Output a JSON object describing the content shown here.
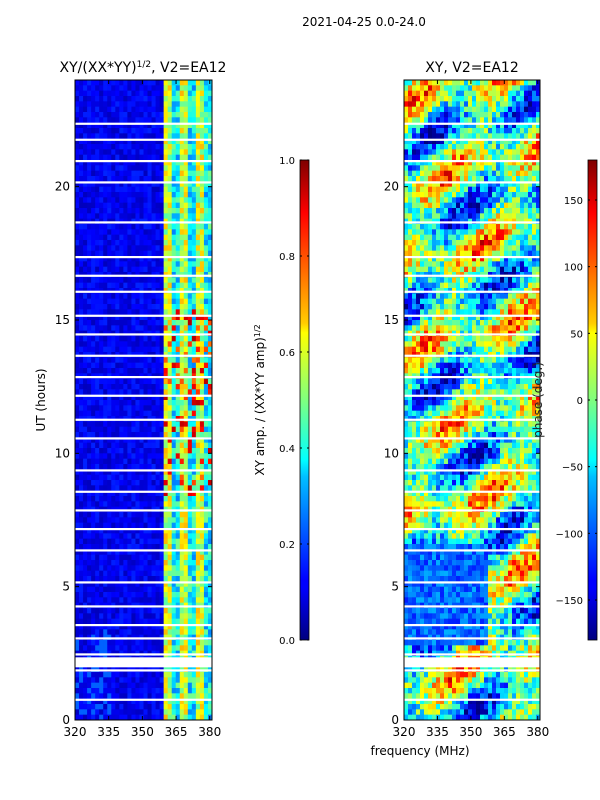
{
  "suptitle": "2021-04-25 0.0-24.0",
  "xlabel": "frequency (MHz)",
  "chart_data": [
    {
      "type": "heatmap",
      "title": "XY/(XX*YY)^{1/2}, V2=EA12",
      "title_parts": [
        "XY/(XX*YY)",
        "1/2",
        ", V2=EA12"
      ],
      "ylabel": "UT (hours)",
      "xlim": [
        320,
        381
      ],
      "ylim": [
        0,
        24
      ],
      "xticks": [
        320,
        335,
        350,
        365,
        380
      ],
      "yticks": [
        0,
        5,
        10,
        15,
        20
      ],
      "colorbar": {
        "label_parts": [
          "XY amp. / (XX*YY amp)",
          "1/2"
        ],
        "range": [
          0.0,
          1.0
        ],
        "ticks": [
          "0.0",
          "0.2",
          "0.4",
          "0.6",
          "0.8",
          "1.0"
        ],
        "colormap": "jet"
      }
    },
    {
      "type": "heatmap",
      "title": "XY, V2=EA12",
      "ylabel": "",
      "xlim": [
        320,
        381
      ],
      "ylim": [
        0,
        24
      ],
      "xticks": [
        320,
        335,
        350,
        365,
        380
      ],
      "yticks": [
        0,
        5,
        10,
        15,
        20
      ],
      "colorbar": {
        "label": "phase (deg.)",
        "range": [
          -180,
          180
        ],
        "ticks": [
          "150",
          "100",
          "50",
          "0",
          "−50",
          "−100",
          "−150"
        ],
        "colormap": "jet"
      }
    }
  ]
}
